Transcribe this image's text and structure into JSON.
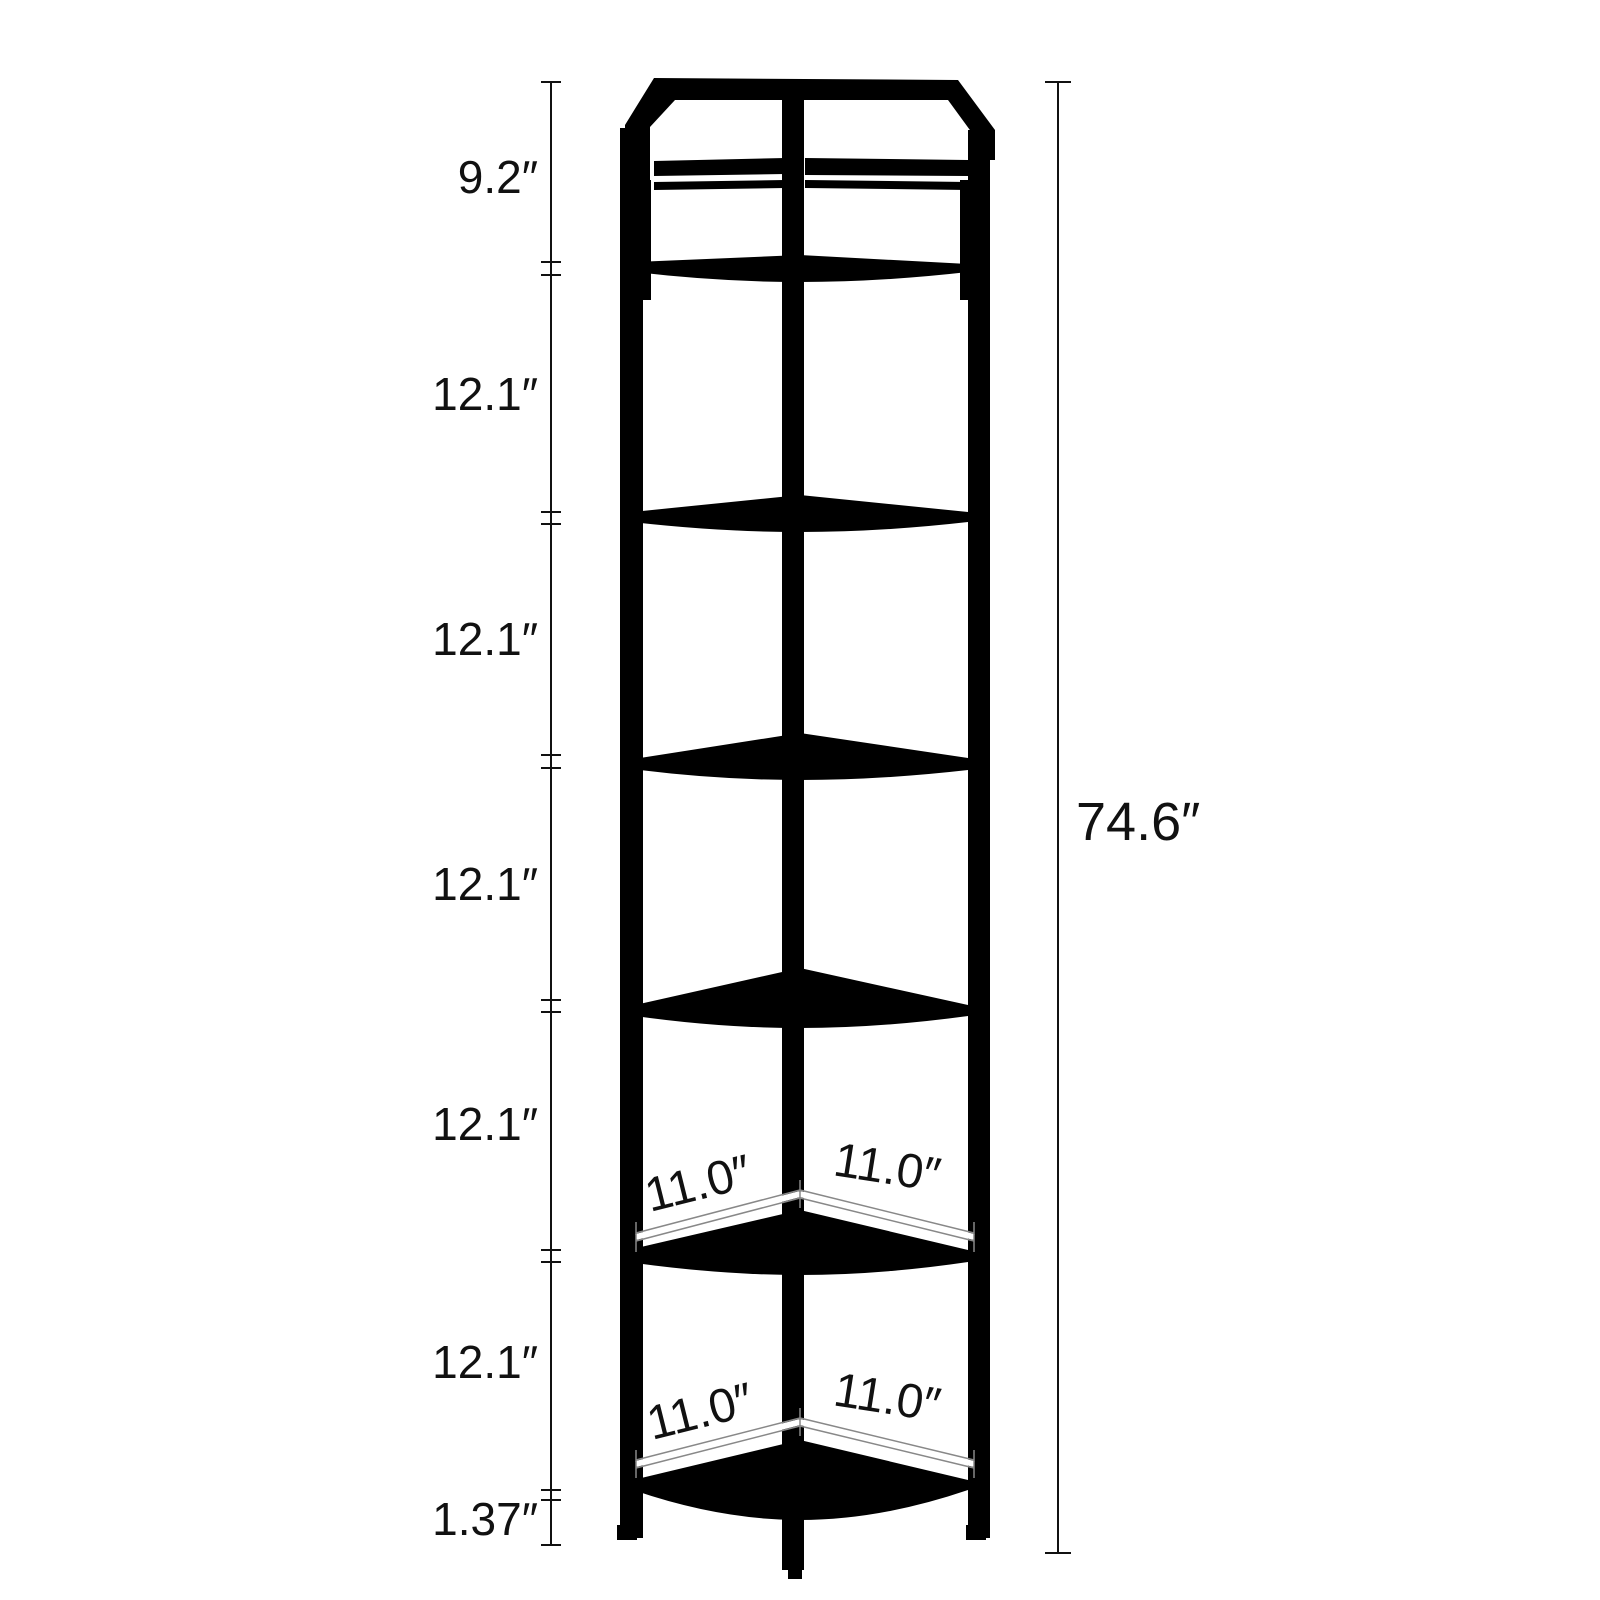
{
  "product": {
    "color": "#0a0a0a",
    "frame_color": "#000000",
    "background": "#ffffff"
  },
  "height_dimensions": {
    "top_section": "9.2″",
    "shelf_gaps": [
      "12.1″",
      "12.1″",
      "12.1″",
      "12.1″",
      "12.1″"
    ],
    "foot_height": "1.37″",
    "total_height": "74.6″"
  },
  "depth_dimensions": {
    "upper_left": "11.0″",
    "upper_right": "11.0″",
    "lower_left": "11.0″",
    "lower_right": "11.0″"
  }
}
